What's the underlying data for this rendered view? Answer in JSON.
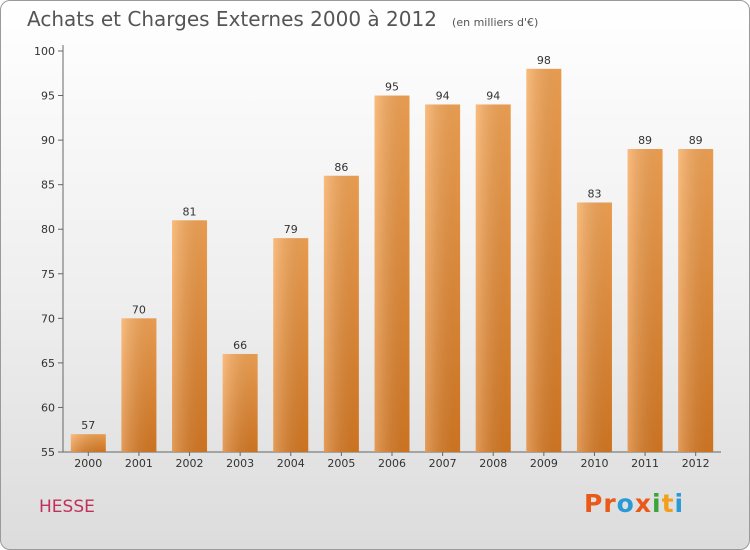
{
  "chart_data": {
    "type": "bar",
    "title": "Achats et Charges Externes 2000 à 2012",
    "subtitle": "(en milliers d'€)",
    "categories": [
      "2000",
      "2001",
      "2002",
      "2003",
      "2004",
      "2005",
      "2006",
      "2007",
      "2008",
      "2009",
      "2010",
      "2011",
      "2012"
    ],
    "values": [
      57,
      70,
      81,
      66,
      79,
      86,
      95,
      94,
      94,
      98,
      83,
      89,
      89
    ],
    "ylim": [
      55,
      100
    ],
    "yticks": [
      55,
      60,
      65,
      70,
      75,
      80,
      85,
      90,
      95,
      100
    ],
    "grid": false,
    "bar_color_top": "#f7a655",
    "bar_color_bottom": "#d97a22",
    "data_labels": true
  },
  "footer": {
    "commune": "HESSE",
    "brand_letters": [
      "P",
      "r",
      "o",
      "x",
      "i",
      "t",
      "i"
    ],
    "brand_colors": [
      "#e8591a",
      "#e8591a",
      "#2a9ad6",
      "#e8591a",
      "#3aa53a",
      "#f2a01c",
      "#2a9ad6"
    ]
  }
}
